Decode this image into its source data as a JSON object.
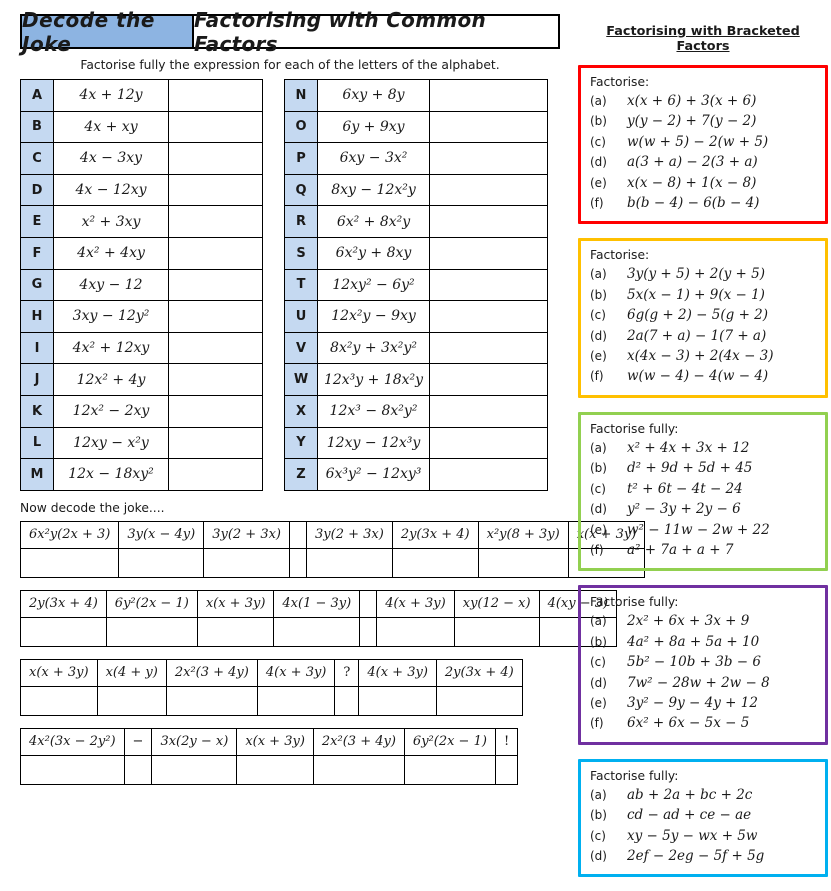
{
  "colors": {
    "header_blue": "#8db4e2",
    "letter_blue": "#c5d9f1",
    "red": "#ff0000",
    "orange": "#ffc000",
    "green": "#92d050",
    "purple": "#7030a0",
    "cyan": "#00b0f0"
  },
  "header": {
    "badge": "Decode the Joke",
    "title": "Factorising with Common Factors",
    "instruction": "Factorise fully the expression for each of the letters of the alphabet."
  },
  "alphabet": {
    "left": [
      {
        "letter": "A",
        "expr": "4x + 12y"
      },
      {
        "letter": "B",
        "expr": "4x + xy"
      },
      {
        "letter": "C",
        "expr": "4x − 3xy"
      },
      {
        "letter": "D",
        "expr": "4x − 12xy"
      },
      {
        "letter": "E",
        "expr": "x² + 3xy"
      },
      {
        "letter": "F",
        "expr": "4x² + 4xy"
      },
      {
        "letter": "G",
        "expr": "4xy − 12"
      },
      {
        "letter": "H",
        "expr": "3xy − 12y²"
      },
      {
        "letter": "I",
        "expr": "4x² + 12xy"
      },
      {
        "letter": "J",
        "expr": "12x² + 4y"
      },
      {
        "letter": "K",
        "expr": "12x² − 2xy"
      },
      {
        "letter": "L",
        "expr": "12xy − x²y"
      },
      {
        "letter": "M",
        "expr": "12x − 18xy²"
      }
    ],
    "right": [
      {
        "letter": "N",
        "expr": "6xy + 8y"
      },
      {
        "letter": "O",
        "expr": "6y + 9xy"
      },
      {
        "letter": "P",
        "expr": "6xy − 3x²"
      },
      {
        "letter": "Q",
        "expr": "8xy − 12x²y"
      },
      {
        "letter": "R",
        "expr": "6x² + 8x²y"
      },
      {
        "letter": "S",
        "expr": "6x²y + 8xy"
      },
      {
        "letter": "T",
        "expr": "12xy² − 6y²"
      },
      {
        "letter": "U",
        "expr": "12x²y − 9xy"
      },
      {
        "letter": "V",
        "expr": "8x²y + 3x²y²"
      },
      {
        "letter": "W",
        "expr": "12x³y + 18x²y"
      },
      {
        "letter": "X",
        "expr": "12x³ − 8x²y²"
      },
      {
        "letter": "Y",
        "expr": "12xy − 12x³y"
      },
      {
        "letter": "Z",
        "expr": "6x³y² − 12xy³"
      }
    ]
  },
  "decode": {
    "label": "Now decode the joke....",
    "tables": [
      {
        "cells": [
          {
            "text": "6x²y(2x + 3)",
            "type": "expr"
          },
          {
            "text": "3y(x − 4y)",
            "type": "expr"
          },
          {
            "text": "3y(2 + 3x)",
            "type": "expr"
          },
          {
            "text": "",
            "type": "spacer"
          },
          {
            "text": "3y(2 + 3x)",
            "type": "expr"
          },
          {
            "text": "2y(3x + 4)",
            "type": "expr"
          },
          {
            "text": "x²y(8 + 3y)",
            "type": "expr"
          },
          {
            "text": "x(x + 3y)",
            "type": "expr"
          }
        ]
      },
      {
        "cells": [
          {
            "text": "2y(3x + 4)",
            "type": "expr"
          },
          {
            "text": "6y²(2x − 1)",
            "type": "expr"
          },
          {
            "text": "x(x + 3y)",
            "type": "expr"
          },
          {
            "text": "4x(1 − 3y)",
            "type": "expr"
          },
          {
            "text": "",
            "type": "spacer"
          },
          {
            "text": "4(x + 3y)",
            "type": "expr"
          },
          {
            "text": "xy(12 − x)",
            "type": "expr"
          },
          {
            "text": "4(xy − 3)",
            "type": "expr"
          }
        ]
      },
      {
        "cells": [
          {
            "text": "x(x + 3y)",
            "type": "expr"
          },
          {
            "text": "x(4 + y)",
            "type": "expr"
          },
          {
            "text": "2x²(3 + 4y)",
            "type": "expr"
          },
          {
            "text": "4(x + 3y)",
            "type": "expr"
          },
          {
            "text": "?",
            "type": "punct"
          },
          {
            "text": "4(x + 3y)",
            "type": "expr"
          },
          {
            "text": "2y(3x + 4)",
            "type": "expr"
          }
        ]
      },
      {
        "cells": [
          {
            "text": "4x²(3x − 2y²)",
            "type": "expr"
          },
          {
            "text": "−",
            "type": "spacer"
          },
          {
            "text": "3x(2y − x)",
            "type": "expr"
          },
          {
            "text": "x(x + 3y)",
            "type": "expr"
          },
          {
            "text": "2x²(3 + 4y)",
            "type": "expr"
          },
          {
            "text": "6y²(2x − 1)",
            "type": "expr"
          },
          {
            "text": "!",
            "type": "punct"
          }
        ]
      }
    ]
  },
  "sidebar": {
    "title": "Factorising with Bracketed Factors",
    "boxes": [
      {
        "color_key": "red",
        "heading": "Factorise:",
        "items": [
          {
            "label": "(a)",
            "expr": "x(x + 6) + 3(x + 6)"
          },
          {
            "label": "(b)",
            "expr": "y(y − 2) + 7(y − 2)"
          },
          {
            "label": "(c)",
            "expr": "w(w + 5) − 2(w + 5)"
          },
          {
            "label": "(d)",
            "expr": "a(3 + a) − 2(3 + a)"
          },
          {
            "label": "(e)",
            "expr": "x(x − 8) + 1(x − 8)"
          },
          {
            "label": "(f)",
            "expr": "b(b − 4) − 6(b − 4)"
          }
        ]
      },
      {
        "color_key": "orange",
        "heading": "Factorise:",
        "items": [
          {
            "label": "(a)",
            "expr": "3y(y + 5) + 2(y + 5)"
          },
          {
            "label": "(b)",
            "expr": "5x(x − 1) + 9(x − 1)"
          },
          {
            "label": "(c)",
            "expr": "6g(g + 2) − 5(g + 2)"
          },
          {
            "label": "(d)",
            "expr": "2a(7 + a) − 1(7 + a)"
          },
          {
            "label": "(e)",
            "expr": "x(4x − 3) + 2(4x − 3)"
          },
          {
            "label": "(f)",
            "expr": "w(w − 4) − 4(w − 4)"
          }
        ]
      },
      {
        "color_key": "green",
        "heading": "Factorise fully:",
        "items": [
          {
            "label": "(a)",
            "expr": "x² + 4x + 3x + 12"
          },
          {
            "label": "(b)",
            "expr": "d² + 9d + 5d + 45"
          },
          {
            "label": "(c)",
            "expr": "t² + 6t − 4t − 24"
          },
          {
            "label": "(d)",
            "expr": "y² − 3y + 2y − 6"
          },
          {
            "label": "(e)",
            "expr": "w² − 11w − 2w + 22"
          },
          {
            "label": "(f)",
            "expr": "a² + 7a + a + 7"
          }
        ]
      },
      {
        "color_key": "purple",
        "heading": "Factorise fully:",
        "items": [
          {
            "label": "(a)",
            "expr": "2x² + 6x + 3x + 9"
          },
          {
            "label": "(b)",
            "expr": "4a² + 8a + 5a + 10"
          },
          {
            "label": "(c)",
            "expr": "5b² − 10b + 3b − 6"
          },
          {
            "label": "(d)",
            "expr": "7w² − 28w + 2w − 8"
          },
          {
            "label": "(e)",
            "expr": "3y² − 9y − 4y + 12"
          },
          {
            "label": "(f)",
            "expr": "6x² + 6x − 5x − 5"
          }
        ]
      },
      {
        "color_key": "cyan",
        "heading": "Factorise fully:",
        "items": [
          {
            "label": "(a)",
            "expr": "ab + 2a + bc + 2c"
          },
          {
            "label": "(b)",
            "expr": "cd − ad + ce − ae"
          },
          {
            "label": "(c)",
            "expr": "xy − 5y − wx + 5w"
          },
          {
            "label": "(d)",
            "expr": "2ef − 2eg − 5f + 5g"
          }
        ]
      }
    ]
  }
}
